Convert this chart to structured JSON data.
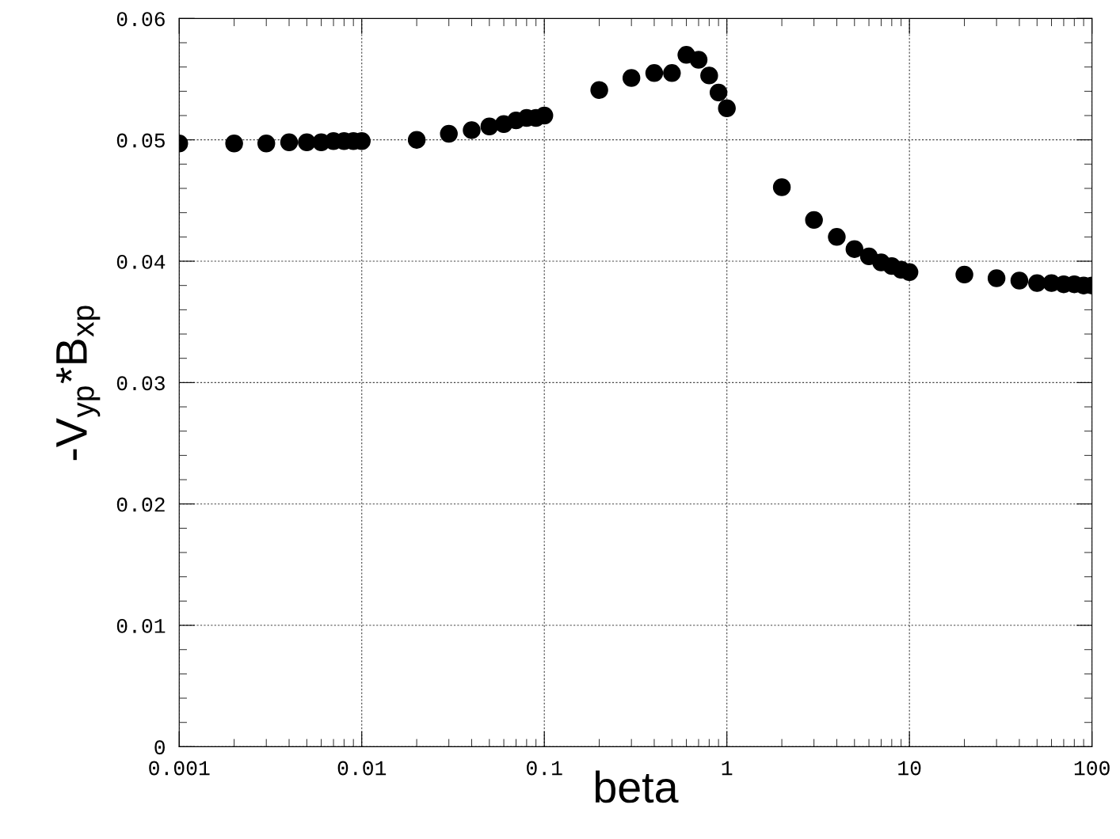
{
  "chart_data": {
    "type": "scatter",
    "xlabel": "beta",
    "ylabel": "-V$_{yp}$*B$_{xp}$",
    "x": [
      0.001,
      0.002,
      0.003,
      0.004,
      0.005,
      0.006,
      0.007,
      0.008,
      0.009,
      0.01,
      0.02,
      0.03,
      0.04,
      0.05,
      0.06,
      0.07,
      0.08,
      0.09,
      0.1,
      0.2,
      0.3,
      0.4,
      0.5,
      0.6,
      0.7,
      0.8,
      0.9,
      1,
      2,
      3,
      4,
      5,
      6,
      7,
      8,
      9,
      10,
      20,
      30,
      40,
      50,
      60,
      70,
      80,
      90,
      100
    ],
    "series": [
      {
        "color": "#000000",
        "values": [
          0.0497,
          0.0497,
          0.0497,
          0.0498,
          0.0498,
          0.0498,
          0.0499,
          0.0499,
          0.0499,
          0.0499,
          0.05,
          0.0505,
          0.0508,
          0.0511,
          0.0513,
          0.0516,
          0.0518,
          0.0518,
          0.052,
          0.0541,
          0.0551,
          0.0555,
          0.0555,
          0.057,
          0.0566,
          0.0553,
          0.0539,
          0.0526,
          0.0461,
          0.0434,
          0.042,
          0.041,
          0.0404,
          0.0399,
          0.0396,
          0.0393,
          0.0391,
          0.0389,
          0.0386,
          0.0384,
          0.0382,
          0.0382,
          0.0381,
          0.0381,
          0.038,
          0.038
        ]
      }
    ],
    "log": "x",
    "xlim": [
      0.001,
      100
    ],
    "ylim": [
      0,
      0.06
    ],
    "xticks": [
      0.001,
      0.01,
      0.1,
      1,
      10,
      100
    ],
    "yticks": [
      0,
      0.01,
      0.02,
      0.03,
      0.04,
      0.05,
      0.06
    ],
    "grid": true,
    "marker": "circle"
  }
}
